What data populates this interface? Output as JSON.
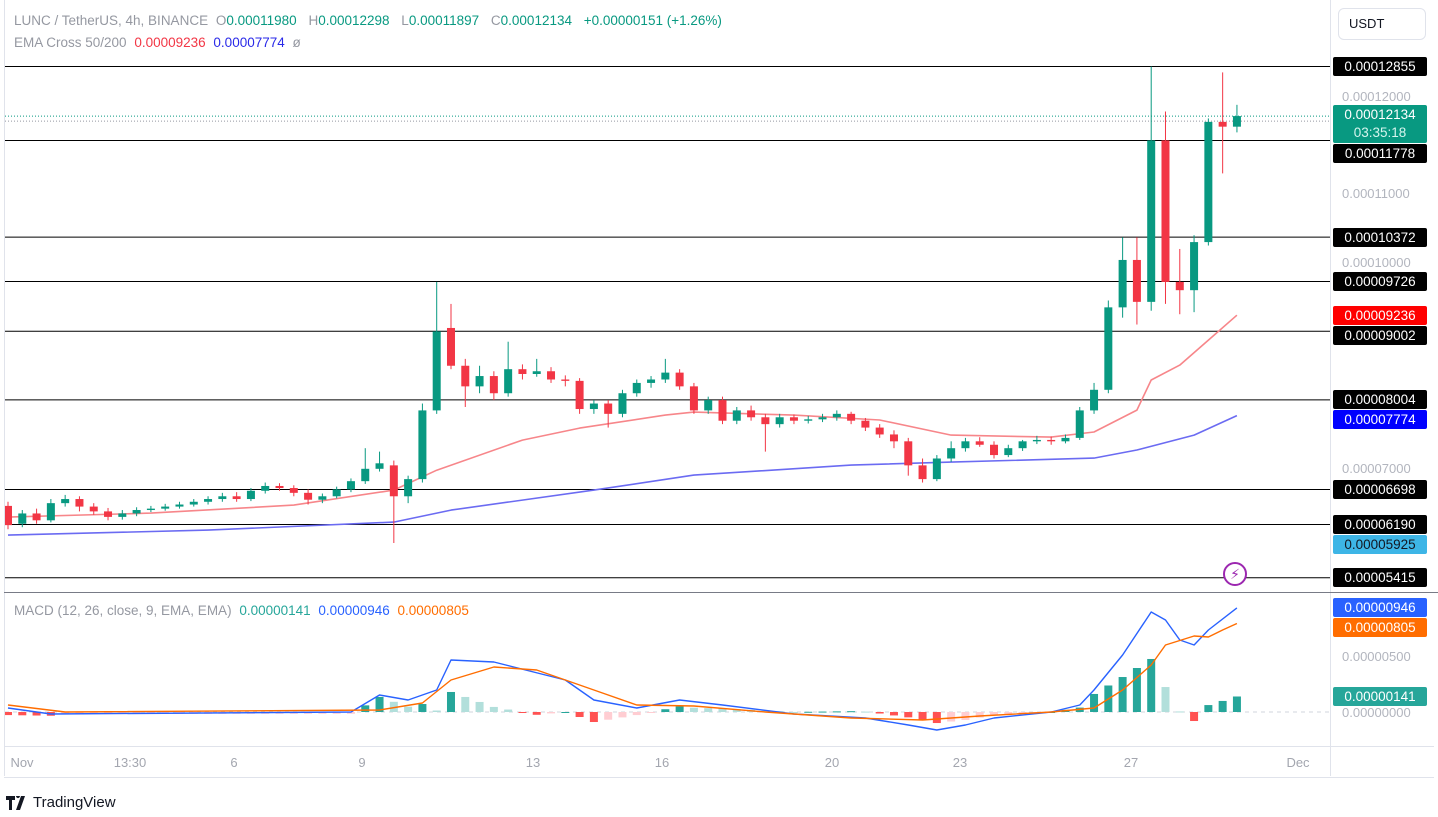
{
  "header": {
    "symbol": "LUNC / TetherUS, 4h, BINANCE",
    "o_label": "O",
    "o": "0.00011980",
    "h_label": "H",
    "h": "0.00012298",
    "l_label": "L",
    "l": "0.00011897",
    "c_label": "C",
    "c": "0.00012134",
    "change": "+0.00000151 (+1.26%)",
    "ema_name": "EMA Cross 50/200",
    "ema50": "0.00009236",
    "ema200": "0.00007774",
    "ema_extra": "ø"
  },
  "currency_button": "USDT",
  "current_price": {
    "value": "0.00012134",
    "countdown": "03:35:18",
    "price": 0.00012134
  },
  "macd_legend": {
    "name": "MACD (12, 26, close, 9, EMA, EMA)",
    "hist": "0.00000141",
    "macd": "0.00000946",
    "signal": "0.00000805"
  },
  "brand": "TradingView",
  "colors": {
    "up": "#089981",
    "down": "#f23645",
    "ema50": "#f7868a",
    "ema200": "#6b6bf2",
    "macd": "#2962ff",
    "signal": "#ff6d00",
    "level": "#000000",
    "alert": "#9c27b0"
  },
  "icons": {
    "alert": "lightning-icon",
    "logo": "tradingview-logo-icon"
  },
  "chart_data": {
    "type": "candlestick",
    "price_axis_ticks": [
      {
        "label": "0.00012000",
        "value": 0.00012
      },
      {
        "label": "0.00011000",
        "value": 0.00011
      },
      {
        "label": "0.00010000",
        "value": 0.0001
      },
      {
        "label": "0.00007000",
        "value": 7e-05
      }
    ],
    "macd_axis_ticks": [
      {
        "label": "0.00000500",
        "value": 5e-06
      },
      {
        "label": "0.00000000",
        "value": 0
      }
    ],
    "time_axis_ticks": [
      "Nov",
      "13:30",
      "6",
      "9",
      "13",
      "16",
      "20",
      "23",
      "27",
      "Dec"
    ],
    "levels": [
      {
        "label": "0.00012855",
        "value": 0.00012855,
        "bg": "#000000",
        "fg": "#ffffff",
        "line": true
      },
      {
        "label": "0.00011778",
        "value": 0.00011778,
        "bg": "#000000",
        "fg": "#ffffff",
        "line": true
      },
      {
        "label": "0.00010372",
        "value": 0.00010372,
        "bg": "#000000",
        "fg": "#ffffff",
        "line": true
      },
      {
        "label": "0.00009726",
        "value": 9.726e-05,
        "bg": "#000000",
        "fg": "#ffffff",
        "line": true
      },
      {
        "label": "0.00009236",
        "value": 9.236e-05,
        "bg": "#ff0000",
        "fg": "#ffffff",
        "line": false
      },
      {
        "label": "0.00009002",
        "value": 9.002e-05,
        "bg": "#000000",
        "fg": "#ffffff",
        "line": true
      },
      {
        "label": "0.00008004",
        "value": 8.004e-05,
        "bg": "#000000",
        "fg": "#ffffff",
        "line": true
      },
      {
        "label": "0.00007774",
        "value": 7.774e-05,
        "bg": "#0000ff",
        "fg": "#ffffff",
        "line": false
      },
      {
        "label": "0.00006698",
        "value": 6.698e-05,
        "bg": "#000000",
        "fg": "#ffffff",
        "line": true
      },
      {
        "label": "0.00006190",
        "value": 6.19e-05,
        "bg": "#000000",
        "fg": "#ffffff",
        "line": true
      },
      {
        "label": "0.00005925",
        "value": 5.925e-05,
        "bg": "#3db5e6",
        "fg": "#131722",
        "line": false
      },
      {
        "label": "0.00005415",
        "value": 5.415e-05,
        "bg": "#000000",
        "fg": "#ffffff",
        "line": true
      }
    ],
    "macd_labels": [
      {
        "label": "0.00000946",
        "value": 9.46e-06,
        "bg": "#2962ff"
      },
      {
        "label": "0.00000805",
        "value": 8.05e-06,
        "bg": "#ff6d00"
      },
      {
        "label": "0.00000141",
        "value": 1.41e-06,
        "bg": "#26a69a"
      }
    ],
    "candles_ohlc": [
      [
        6.46e-05,
        6.52e-05,
        6.12e-05,
        6.18e-05
      ],
      [
        6.2e-05,
        6.4e-05,
        6.15e-05,
        6.35e-05
      ],
      [
        6.35e-05,
        6.42e-05,
        6.2e-05,
        6.25e-05
      ],
      [
        6.25e-05,
        6.56e-05,
        6.22e-05,
        6.5e-05
      ],
      [
        6.5e-05,
        6.62e-05,
        6.45e-05,
        6.56e-05
      ],
      [
        6.56e-05,
        6.6e-05,
        6.38e-05,
        6.45e-05
      ],
      [
        6.45e-05,
        6.5e-05,
        6.33e-05,
        6.38e-05
      ],
      [
        6.38e-05,
        6.43e-05,
        6.25e-05,
        6.3e-05
      ],
      [
        6.3e-05,
        6.4e-05,
        6.26e-05,
        6.35e-05
      ],
      [
        6.35e-05,
        6.44e-05,
        6.31e-05,
        6.4e-05
      ],
      [
        6.4e-05,
        6.46e-05,
        6.37e-05,
        6.42e-05
      ],
      [
        6.42e-05,
        6.49e-05,
        6.39e-05,
        6.45e-05
      ],
      [
        6.45e-05,
        6.52e-05,
        6.42e-05,
        6.48e-05
      ],
      [
        6.48e-05,
        6.56e-05,
        6.45e-05,
        6.52e-05
      ],
      [
        6.52e-05,
        6.6e-05,
        6.48e-05,
        6.56e-05
      ],
      [
        6.56e-05,
        6.65e-05,
        6.52e-05,
        6.6e-05
      ],
      [
        6.6e-05,
        6.66e-05,
        6.52e-05,
        6.56e-05
      ],
      [
        6.56e-05,
        6.72e-05,
        6.53e-05,
        6.68e-05
      ],
      [
        6.68e-05,
        6.8e-05,
        6.64e-05,
        6.75e-05
      ],
      [
        6.75e-05,
        6.79e-05,
        6.68e-05,
        6.72e-05
      ],
      [
        6.72e-05,
        6.76e-05,
        6.6e-05,
        6.65e-05
      ],
      [
        6.65e-05,
        6.7e-05,
        6.48e-05,
        6.55e-05
      ],
      [
        6.55e-05,
        6.64e-05,
        6.5e-05,
        6.6e-05
      ],
      [
        6.6e-05,
        6.74e-05,
        6.57e-05,
        6.7e-05
      ],
      [
        6.7e-05,
        6.86e-05,
        6.66e-05,
        6.82e-05
      ],
      [
        6.82e-05,
        7.3e-05,
        6.78e-05,
        7e-05
      ],
      [
        7e-05,
        7.25e-05,
        6.96e-05,
        7.08e-05
      ],
      [
        7.05e-05,
        7.12e-05,
        5.92e-05,
        6.6e-05
      ],
      [
        6.6e-05,
        6.9e-05,
        6.5e-05,
        6.85e-05
      ],
      [
        6.85e-05,
        7.95e-05,
        6.8e-05,
        7.85e-05
      ],
      [
        7.85e-05,
        9.72e-05,
        7.8e-05,
        9e-05
      ],
      [
        9.05e-05,
        9.4e-05,
        8.45e-05,
        8.5e-05
      ],
      [
        8.5e-05,
        8.6e-05,
        7.9e-05,
        8.2e-05
      ],
      [
        8.2e-05,
        8.5e-05,
        8.1e-05,
        8.35e-05
      ],
      [
        8.35e-05,
        8.42e-05,
        8e-05,
        8.1e-05
      ],
      [
        8.1e-05,
        8.85e-05,
        8.05e-05,
        8.45e-05
      ],
      [
        8.45e-05,
        8.52e-05,
        8.3e-05,
        8.38e-05
      ],
      [
        8.38e-05,
        8.6e-05,
        8.34e-05,
        8.42e-05
      ],
      [
        8.42e-05,
        8.48e-05,
        8.25e-05,
        8.3e-05
      ],
      [
        8.3e-05,
        8.36e-05,
        8.2e-05,
        8.28e-05
      ],
      [
        8.28e-05,
        8.32e-05,
        7.8e-05,
        7.87e-05
      ],
      [
        7.87e-05,
        8e-05,
        7.8e-05,
        7.95e-05
      ],
      [
        7.95e-05,
        8e-05,
        7.6e-05,
        7.8e-05
      ],
      [
        7.8e-05,
        8.15e-05,
        7.75e-05,
        8.1e-05
      ],
      [
        8.1e-05,
        8.3e-05,
        8.05e-05,
        8.25e-05
      ],
      [
        8.25e-05,
        8.35e-05,
        8.18e-05,
        8.3e-05
      ],
      [
        8.3e-05,
        8.6e-05,
        8.25e-05,
        8.4e-05
      ],
      [
        8.4e-05,
        8.45e-05,
        8.15e-05,
        8.2e-05
      ],
      [
        8.2e-05,
        8.25e-05,
        7.8e-05,
        7.85e-05
      ],
      [
        7.85e-05,
        8.05e-05,
        7.8e-05,
        8e-05
      ],
      [
        8e-05,
        8.05e-05,
        7.65e-05,
        7.7e-05
      ],
      [
        7.7e-05,
        7.9e-05,
        7.65e-05,
        7.85e-05
      ],
      [
        7.85e-05,
        7.92e-05,
        7.7e-05,
        7.75e-05
      ],
      [
        7.75e-05,
        7.8e-05,
        7.25e-05,
        7.65e-05
      ],
      [
        7.65e-05,
        7.8e-05,
        7.6e-05,
        7.75e-05
      ],
      [
        7.75e-05,
        7.79e-05,
        7.65e-05,
        7.7e-05
      ],
      [
        7.7e-05,
        7.77e-05,
        7.66e-05,
        7.72e-05
      ],
      [
        7.72e-05,
        7.8e-05,
        7.68e-05,
        7.75e-05
      ],
      [
        7.75e-05,
        7.85e-05,
        7.7e-05,
        7.8e-05
      ],
      [
        7.8e-05,
        7.83e-05,
        7.65e-05,
        7.7e-05
      ],
      [
        7.7e-05,
        7.74e-05,
        7.55e-05,
        7.6e-05
      ],
      [
        7.6e-05,
        7.65e-05,
        7.45e-05,
        7.5e-05
      ],
      [
        7.5e-05,
        7.56e-05,
        7.3e-05,
        7.4e-05
      ],
      [
        7.4e-05,
        7.45e-05,
        6.9e-05,
        7.05e-05
      ],
      [
        7.05e-05,
        7.15e-05,
        6.8e-05,
        6.85e-05
      ],
      [
        6.85e-05,
        7.2e-05,
        6.82e-05,
        7.15e-05
      ],
      [
        7.15e-05,
        7.4e-05,
        7.1e-05,
        7.3e-05
      ],
      [
        7.3e-05,
        7.45e-05,
        7.25e-05,
        7.4e-05
      ],
      [
        7.4e-05,
        7.46e-05,
        7.32e-05,
        7.35e-05
      ],
      [
        7.35e-05,
        7.4e-05,
        7.15e-05,
        7.2e-05
      ],
      [
        7.2e-05,
        7.35e-05,
        7.17e-05,
        7.3e-05
      ],
      [
        7.3e-05,
        7.42e-05,
        7.26e-05,
        7.4e-05
      ],
      [
        7.4e-05,
        7.48e-05,
        7.36e-05,
        7.42e-05
      ],
      [
        7.42e-05,
        7.47e-05,
        7.35e-05,
        7.4e-05
      ],
      [
        7.4e-05,
        7.5e-05,
        7.37e-05,
        7.45e-05
      ],
      [
        7.45e-05,
        7.9e-05,
        7.42e-05,
        7.85e-05
      ],
      [
        7.85e-05,
        8.25e-05,
        7.8e-05,
        8.15e-05
      ],
      [
        8.15e-05,
        9.45e-05,
        8.1e-05,
        9.35e-05
      ],
      [
        9.35e-05,
        0.0001037,
        9.2e-05,
        0.0001004
      ],
      [
        0.0001004,
        0.0001037,
        9.1e-05,
        9.43e-05
      ],
      [
        9.43e-05,
        0.00012855,
        9.3e-05,
        0.0001178
      ],
      [
        0.0001178,
        0.000122,
        9.4e-05,
        9.72e-05
      ],
      [
        9.72e-05,
        0.000102,
        9.25e-05,
        9.6e-05
      ],
      [
        9.6e-05,
        0.000104,
        9.28e-05,
        0.000103
      ],
      [
        0.000103,
        0.000121,
        0.0001025,
        0.0001205
      ],
      [
        0.0001205,
        0.0001277,
        0.000113,
        0.0001198
      ],
      [
        0.0001198,
        0.00012298,
        0.00011897,
        0.00012134
      ]
    ],
    "ema50_points": [
      [
        0,
        6.297e-05
      ],
      [
        10,
        6.355e-05
      ],
      [
        20,
        6.472e-05
      ],
      [
        27,
        6.69e-05
      ],
      [
        30,
        6.98e-05
      ],
      [
        36,
        7.418e-05
      ],
      [
        40,
        7.593e-05
      ],
      [
        46,
        7.782e-05
      ],
      [
        48,
        7.826e-05
      ],
      [
        55,
        7.782e-05
      ],
      [
        61,
        7.71e-05
      ],
      [
        66,
        7.491e-05
      ],
      [
        73,
        7.462e-05
      ],
      [
        76,
        7.535e-05
      ],
      [
        79,
        7.855e-05
      ],
      [
        80,
        8.292e-05
      ],
      [
        82,
        8.51e-05
      ],
      [
        84,
        8.874e-05
      ],
      [
        86,
        9.236e-05
      ]
    ],
    "ema200_points": [
      [
        0,
        6.035e-05
      ],
      [
        14,
        6.108e-05
      ],
      [
        27,
        6.224e-05
      ],
      [
        31,
        6.399e-05
      ],
      [
        41,
        6.69e-05
      ],
      [
        48,
        6.909e-05
      ],
      [
        59,
        7.054e-05
      ],
      [
        66,
        7.098e-05
      ],
      [
        76,
        7.156e-05
      ],
      [
        79,
        7.273e-05
      ],
      [
        83,
        7.491e-05
      ],
      [
        86,
        7.774e-05
      ]
    ],
    "macd_points": [
      [
        0,
        3.6e-07
      ],
      [
        3,
        -1.8e-07
      ],
      [
        24,
        0
      ],
      [
        26,
        1.55e-06
      ],
      [
        28,
        1.09e-06
      ],
      [
        30,
        2e-06
      ],
      [
        31,
        4.73e-06
      ],
      [
        34,
        4.55e-06
      ],
      [
        39,
        2.91e-06
      ],
      [
        41,
        1.09e-06
      ],
      [
        44,
        3.6e-07
      ],
      [
        47,
        1.09e-06
      ],
      [
        50,
        6.4e-07
      ],
      [
        55,
        -1.8e-07
      ],
      [
        60,
        -5.5e-07
      ],
      [
        63,
        -1.18e-06
      ],
      [
        65,
        -1.64e-06
      ],
      [
        67,
        -1.18e-06
      ],
      [
        69,
        -5.5e-07
      ],
      [
        73,
        0
      ],
      [
        75,
        6.4e-07
      ],
      [
        76,
        2e-06
      ],
      [
        78,
        5.18e-06
      ],
      [
        80,
        9.09e-06
      ],
      [
        81,
        8.36e-06
      ],
      [
        82,
        6.55e-06
      ],
      [
        83,
        6.09e-06
      ],
      [
        84,
        7.45e-06
      ],
      [
        86,
        9.46e-06
      ]
    ],
    "signal_points": [
      [
        0,
        6.4e-07
      ],
      [
        4,
        0
      ],
      [
        26,
        1.8e-07
      ],
      [
        29,
        8.2e-07
      ],
      [
        31,
        2.91e-06
      ],
      [
        34,
        4.09e-06
      ],
      [
        37,
        3.82e-06
      ],
      [
        41,
        2e-06
      ],
      [
        44,
        6.4e-07
      ],
      [
        48,
        5.5e-07
      ],
      [
        53,
        0
      ],
      [
        59,
        -5.5e-07
      ],
      [
        64,
        -7.3e-07
      ],
      [
        68,
        -3.6e-07
      ],
      [
        73,
        0
      ],
      [
        76,
        3.6e-07
      ],
      [
        78,
        2e-06
      ],
      [
        80,
        4.27e-06
      ],
      [
        81,
        6.09e-06
      ],
      [
        83,
        6.91e-06
      ],
      [
        84,
        6.82e-06
      ],
      [
        85,
        7.45e-06
      ],
      [
        86,
        8.05e-06
      ]
    ]
  }
}
